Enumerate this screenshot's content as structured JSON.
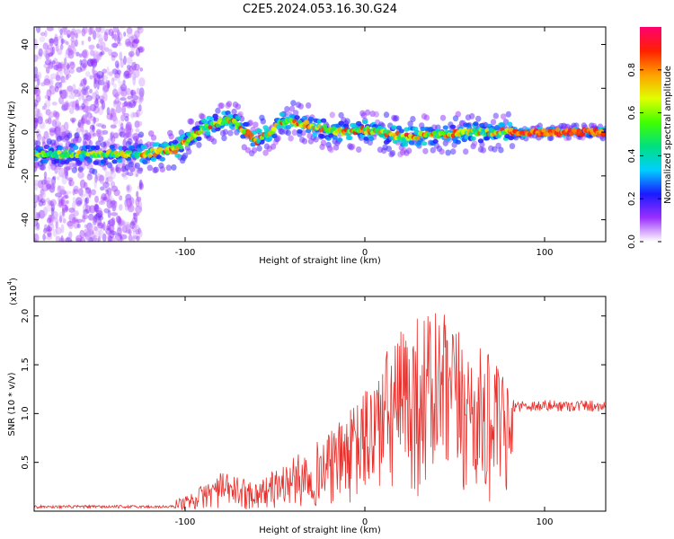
{
  "title": "C2E5.2024.053.16.30.G24",
  "chart_data": [
    {
      "type": "heatmap",
      "xlabel": "Height of straight line (km)",
      "ylabel": "Frequency (Hz)",
      "xlim": [
        -184,
        134
      ],
      "ylim": [
        -50,
        48
      ],
      "x_ticks": [
        -100,
        0,
        100
      ],
      "y_ticks": [
        -40,
        -20,
        0,
        20,
        40
      ],
      "grid": false,
      "colorbar": {
        "label": "Normalized spectral amplitude",
        "range": [
          0,
          1
        ],
        "ticks": [
          0.0,
          0.2,
          0.4,
          0.6,
          0.8
        ],
        "colormap": [
          "#ffffff",
          "#9b30ff",
          "#1a1aff",
          "#00cfff",
          "#00e080",
          "#40ff00",
          "#e0ff00",
          "#ffa000",
          "#ff2000",
          "#ff0070"
        ]
      },
      "ridge": [
        {
          "x": -184,
          "y": -10
        },
        {
          "x": -150,
          "y": -10
        },
        {
          "x": -125,
          "y": -10
        },
        {
          "x": -105,
          "y": -8
        },
        {
          "x": -90,
          "y": 2
        },
        {
          "x": -75,
          "y": 6
        },
        {
          "x": -60,
          "y": -4
        },
        {
          "x": -45,
          "y": 5
        },
        {
          "x": -30,
          "y": 3
        },
        {
          "x": -15,
          "y": 0
        },
        {
          "x": 0,
          "y": 1
        },
        {
          "x": 20,
          "y": -2
        },
        {
          "x": 45,
          "y": -1
        },
        {
          "x": 60,
          "y": 0
        },
        {
          "x": 80,
          "y": 0
        },
        {
          "x": 134,
          "y": 0
        }
      ]
    },
    {
      "type": "line",
      "xlabel": "Height of straight line (km)",
      "ylabel": "SNR (10 * v/v)",
      "ymultiplier": "(x10",
      "ymultiplier_exp": "4",
      "ymultiplier_close": ")",
      "xlim": [
        -184,
        134
      ],
      "ylim": [
        0,
        2.2
      ],
      "x_ticks": [
        -100,
        0,
        100
      ],
      "y_ticks": [
        0.5,
        1.0,
        1.5,
        2.0
      ],
      "y_tick_labels": [
        "0.5",
        "1.0",
        "1.5",
        "2.0"
      ],
      "series_color": "#e8302c",
      "envelope": [
        {
          "x": -184,
          "y": 0.04
        },
        {
          "x": -120,
          "y": 0.05
        },
        {
          "x": -100,
          "y": 0.15
        },
        {
          "x": -80,
          "y": 0.4
        },
        {
          "x": -60,
          "y": 0.3
        },
        {
          "x": -40,
          "y": 0.55
        },
        {
          "x": -20,
          "y": 0.8
        },
        {
          "x": -5,
          "y": 1.1
        },
        {
          "x": 10,
          "y": 1.6
        },
        {
          "x": 25,
          "y": 2.0
        },
        {
          "x": 40,
          "y": 2.1
        },
        {
          "x": 55,
          "y": 1.8
        },
        {
          "x": 70,
          "y": 1.6
        },
        {
          "x": 80,
          "y": 1.3
        },
        {
          "x": 82,
          "y": 1.08
        },
        {
          "x": 134,
          "y": 1.08
        }
      ]
    }
  ]
}
